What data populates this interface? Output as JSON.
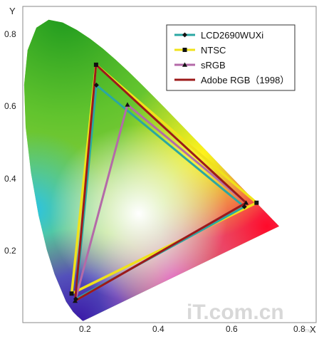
{
  "chart_data": {
    "type": "scatter",
    "title": "",
    "xlabel": "X",
    "ylabel": "Y",
    "xlim": [
      0,
      0.8
    ],
    "ylim": [
      0,
      0.8
    ],
    "x_ticks": [
      "0.2",
      "0.4",
      "0.6",
      "0.8"
    ],
    "y_ticks": [
      "0.2",
      "0.4",
      "0.6",
      "0.8"
    ],
    "grid": false,
    "legend_position": "top-right",
    "background": "CIE 1931 xy chromaticity diagram",
    "series": [
      {
        "name": "LCD2690WUXi",
        "color": "#2aa7a3",
        "marker": "diamond",
        "x": [
          0.635,
          0.211,
          0.152
        ],
        "y": [
          0.319,
          0.654,
          0.065
        ]
      },
      {
        "name": "NTSC",
        "color": "#f0e21a",
        "marker": "square",
        "x": [
          0.67,
          0.21,
          0.14
        ],
        "y": [
          0.33,
          0.71,
          0.08
        ]
      },
      {
        "name": "sRGB",
        "color": "#b46aa8",
        "marker": "triangle",
        "x": [
          0.64,
          0.3,
          0.15
        ],
        "y": [
          0.33,
          0.6,
          0.06
        ]
      },
      {
        "name": "Adobe RGB（1998）",
        "color": "#9c1a1a",
        "marker": "none",
        "x": [
          0.64,
          0.21,
          0.15
        ],
        "y": [
          0.33,
          0.71,
          0.06
        ]
      }
    ]
  },
  "watermark": {
    "main": "iT.com.cn",
    "small": "™"
  }
}
